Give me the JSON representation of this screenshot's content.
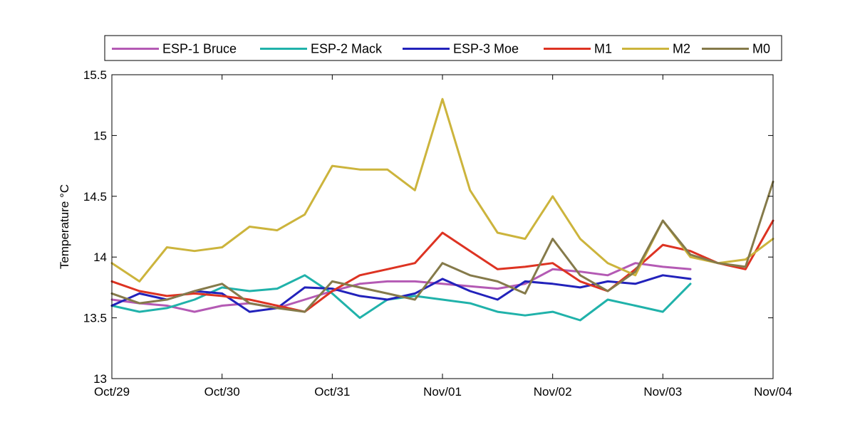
{
  "chart_data": {
    "type": "line",
    "title": "",
    "xlabel": "",
    "ylabel": "Temperature °C",
    "ylim": [
      13,
      15.5
    ],
    "xlim": [
      "2007-10-29T00:00",
      "2007-11-04T00:00"
    ],
    "x_ticks": [
      "Oct/29",
      "Oct/30",
      "Oct/31",
      "Nov/01",
      "Nov/02",
      "Nov/03",
      "Nov/04"
    ],
    "y_ticks": [
      "13",
      "13.5",
      "14",
      "14.5",
      "15",
      "15.5"
    ],
    "grid": false,
    "legend_position": "top",
    "series": [
      {
        "name": "ESP-1 Bruce",
        "color": "#b45ab4",
        "x": [
          "2007-10-29T00:00",
          "2007-10-29T06:00",
          "2007-10-29T12:00",
          "2007-10-29T18:00",
          "2007-10-30T00:00",
          "2007-10-30T06:00",
          "2007-10-30T12:00",
          "2007-10-30T18:00",
          "2007-10-31T00:00",
          "2007-10-31T06:00",
          "2007-10-31T12:00",
          "2007-10-31T18:00",
          "2007-11-01T00:00",
          "2007-11-01T06:00",
          "2007-11-01T12:00",
          "2007-11-01T18:00",
          "2007-11-02T00:00",
          "2007-11-02T06:00",
          "2007-11-02T12:00",
          "2007-11-02T18:00",
          "2007-11-03T00:00",
          "2007-11-03T06:00"
        ],
        "y": [
          13.65,
          13.62,
          13.6,
          13.55,
          13.6,
          13.62,
          13.58,
          13.65,
          13.72,
          13.78,
          13.8,
          13.8,
          13.78,
          13.76,
          13.74,
          13.78,
          13.9,
          13.88,
          13.85,
          13.95,
          13.92,
          13.9
        ]
      },
      {
        "name": "ESP-2 Mack",
        "color": "#20b2aa",
        "x": [
          "2007-10-29T00:00",
          "2007-10-29T06:00",
          "2007-10-29T12:00",
          "2007-10-29T18:00",
          "2007-10-30T00:00",
          "2007-10-30T06:00",
          "2007-10-30T12:00",
          "2007-10-30T18:00",
          "2007-10-31T00:00",
          "2007-10-31T06:00",
          "2007-10-31T12:00",
          "2007-10-31T18:00",
          "2007-11-01T00:00",
          "2007-11-01T06:00",
          "2007-11-01T12:00",
          "2007-11-01T18:00",
          "2007-11-02T00:00",
          "2007-11-02T06:00",
          "2007-11-02T12:00",
          "2007-11-02T18:00",
          "2007-11-03T00:00",
          "2007-11-03T06:00"
        ],
        "y": [
          13.6,
          13.55,
          13.58,
          13.65,
          13.75,
          13.72,
          13.74,
          13.85,
          13.7,
          13.5,
          13.65,
          13.68,
          13.65,
          13.62,
          13.55,
          13.52,
          13.55,
          13.48,
          13.65,
          13.6,
          13.55,
          13.78
        ]
      },
      {
        "name": "ESP-3 Moe",
        "color": "#2222bb",
        "x": [
          "2007-10-29T00:00",
          "2007-10-29T06:00",
          "2007-10-29T12:00",
          "2007-10-29T18:00",
          "2007-10-30T00:00",
          "2007-10-30T06:00",
          "2007-10-30T12:00",
          "2007-10-30T18:00",
          "2007-10-31T00:00",
          "2007-10-31T06:00",
          "2007-10-31T12:00",
          "2007-10-31T18:00",
          "2007-11-01T00:00",
          "2007-11-01T06:00",
          "2007-11-01T12:00",
          "2007-11-01T18:00",
          "2007-11-02T00:00",
          "2007-11-02T06:00",
          "2007-11-02T12:00",
          "2007-11-02T18:00",
          "2007-11-03T00:00",
          "2007-11-03T06:00"
        ],
        "y": [
          13.6,
          13.7,
          13.65,
          13.72,
          13.7,
          13.55,
          13.58,
          13.75,
          13.74,
          13.68,
          13.65,
          13.7,
          13.82,
          13.72,
          13.65,
          13.8,
          13.78,
          13.75,
          13.8,
          13.78,
          13.85,
          13.82
        ]
      },
      {
        "name": "M1",
        "color": "#dd3322",
        "x": [
          "2007-10-29T00:00",
          "2007-10-29T06:00",
          "2007-10-29T12:00",
          "2007-10-29T18:00",
          "2007-10-30T00:00",
          "2007-10-30T06:00",
          "2007-10-30T12:00",
          "2007-10-30T18:00",
          "2007-10-31T00:00",
          "2007-10-31T06:00",
          "2007-10-31T12:00",
          "2007-10-31T18:00",
          "2007-11-01T00:00",
          "2007-11-01T06:00",
          "2007-11-01T12:00",
          "2007-11-01T18:00",
          "2007-11-02T00:00",
          "2007-11-02T06:00",
          "2007-11-02T12:00",
          "2007-11-02T18:00",
          "2007-11-03T00:00",
          "2007-11-03T06:00",
          "2007-11-03T12:00",
          "2007-11-03T18:00",
          "2007-11-04T00:00"
        ],
        "y": [
          13.8,
          13.72,
          13.68,
          13.7,
          13.68,
          13.65,
          13.6,
          13.55,
          13.72,
          13.85,
          13.9,
          13.95,
          14.2,
          14.05,
          13.9,
          13.92,
          13.95,
          13.8,
          13.72,
          13.9,
          14.1,
          14.05,
          13.95,
          13.9,
          14.3
        ]
      },
      {
        "name": "M2",
        "color": "#ccb43c",
        "x": [
          "2007-10-29T00:00",
          "2007-10-29T06:00",
          "2007-10-29T12:00",
          "2007-10-29T18:00",
          "2007-10-30T00:00",
          "2007-10-30T06:00",
          "2007-10-30T12:00",
          "2007-10-30T18:00",
          "2007-10-31T00:00",
          "2007-10-31T06:00",
          "2007-10-31T12:00",
          "2007-10-31T18:00",
          "2007-11-01T00:00",
          "2007-11-01T06:00",
          "2007-11-01T12:00",
          "2007-11-01T18:00",
          "2007-11-02T00:00",
          "2007-11-02T06:00",
          "2007-11-02T12:00",
          "2007-11-02T18:00",
          "2007-11-03T00:00",
          "2007-11-03T06:00",
          "2007-11-03T12:00",
          "2007-11-03T18:00",
          "2007-11-04T00:00"
        ],
        "y": [
          13.95,
          13.8,
          14.08,
          14.05,
          14.08,
          14.25,
          14.22,
          14.35,
          14.75,
          14.72,
          14.72,
          14.55,
          15.3,
          14.55,
          14.2,
          14.15,
          14.5,
          14.15,
          13.95,
          13.85,
          14.3,
          14.0,
          13.95,
          13.98,
          14.15
        ]
      },
      {
        "name": "M0",
        "color": "#857a4a",
        "x": [
          "2007-10-29T00:00",
          "2007-10-29T06:00",
          "2007-10-29T12:00",
          "2007-10-29T18:00",
          "2007-10-30T00:00",
          "2007-10-30T06:00",
          "2007-10-30T12:00",
          "2007-10-30T18:00",
          "2007-10-31T00:00",
          "2007-10-31T06:00",
          "2007-10-31T12:00",
          "2007-10-31T18:00",
          "2007-11-01T00:00",
          "2007-11-01T06:00",
          "2007-11-01T12:00",
          "2007-11-01T18:00",
          "2007-11-02T00:00",
          "2007-11-02T06:00",
          "2007-11-02T12:00",
          "2007-11-02T18:00",
          "2007-11-03T00:00",
          "2007-11-03T06:00",
          "2007-11-03T12:00",
          "2007-11-03T18:00",
          "2007-11-04T00:00"
        ],
        "y": [
          13.7,
          13.62,
          13.65,
          13.72,
          13.78,
          13.62,
          13.58,
          13.55,
          13.8,
          13.75,
          13.7,
          13.65,
          13.95,
          13.85,
          13.8,
          13.7,
          14.15,
          13.85,
          13.72,
          13.88,
          14.3,
          14.02,
          13.95,
          13.92,
          14.62
        ]
      }
    ]
  }
}
